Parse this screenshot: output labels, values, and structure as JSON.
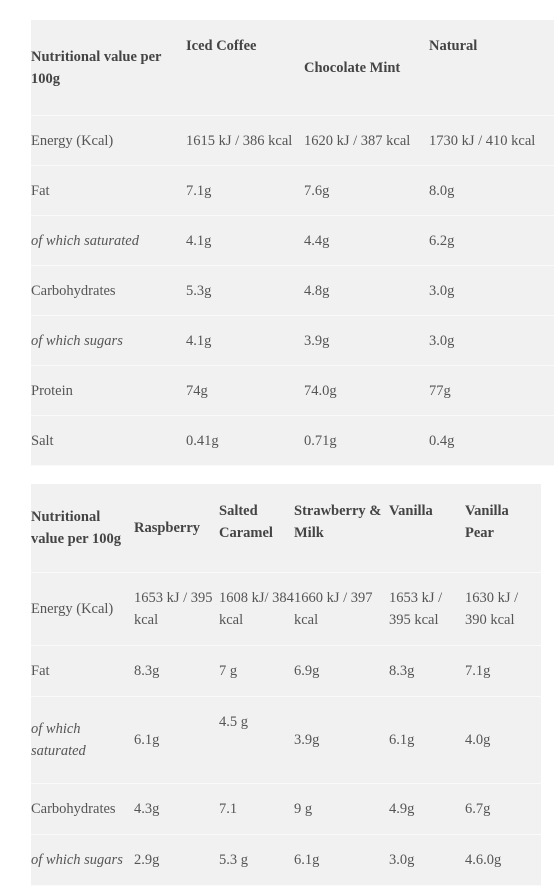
{
  "table1": {
    "headers": [
      "Nutritional value per 100g",
      "Iced Coffee",
      "Chocolate Mint",
      "Natural"
    ],
    "rows": [
      {
        "label": "Energy (Kcal)",
        "italic": false,
        "values": [
          "1615 kJ / 386 kcal",
          "1620 kJ / 387 kcal",
          "1730 kJ / 410 kcal"
        ]
      },
      {
        "label": "Fat",
        "italic": false,
        "values": [
          "7.1g",
          "7.6g",
          "8.0g"
        ]
      },
      {
        "label": "of which saturated",
        "italic": true,
        "values": [
          "4.1g",
          "4.4g",
          "6.2g"
        ]
      },
      {
        "label": "Carbohydrates",
        "italic": false,
        "values": [
          "5.3g",
          "4.8g",
          "3.0g"
        ]
      },
      {
        "label": "of which sugars",
        "italic": true,
        "values": [
          "4.1g",
          "3.9g",
          "3.0g"
        ]
      },
      {
        "label": "Protein",
        "italic": false,
        "values": [
          "74g",
          "74.0g",
          "77g"
        ]
      },
      {
        "label": "Salt",
        "italic": false,
        "values": [
          "0.41g",
          "0.71g",
          "0.4g"
        ]
      }
    ]
  },
  "table2": {
    "headers": [
      "Nutritional value per 100g",
      "Raspberry",
      "Salted Caramel",
      "Strawberry & Milk",
      "Vanilla",
      "Vanilla Pear"
    ],
    "rows": [
      {
        "label": "Energy (Kcal)",
        "italic": false,
        "values": [
          "1653 kJ / 395 kcal",
          "1608 kJ/ 384 kcal",
          "1660 kJ / 397 kcal",
          "1653 kJ / 395 kcal",
          "1630 kJ / 390 kcal"
        ]
      },
      {
        "label": "Fat",
        "italic": false,
        "values": [
          "8.3g",
          "7 g",
          "6.9g",
          "8.3g",
          "7.1g"
        ]
      },
      {
        "label": "of which saturated",
        "italic": true,
        "values": [
          "6.1g",
          "4.5 g",
          "3.9g",
          "6.1g",
          "4.0g"
        ]
      },
      {
        "label": "Carbohydrates",
        "italic": false,
        "values": [
          "4.3g",
          "7.1",
          "9 g",
          "4.9g",
          "6.7g"
        ]
      },
      {
        "label": "of which sugars",
        "italic": true,
        "values": [
          "2.9g",
          "5.3 g",
          "6.1g",
          "3.0g",
          "4.6.0g"
        ]
      }
    ]
  }
}
